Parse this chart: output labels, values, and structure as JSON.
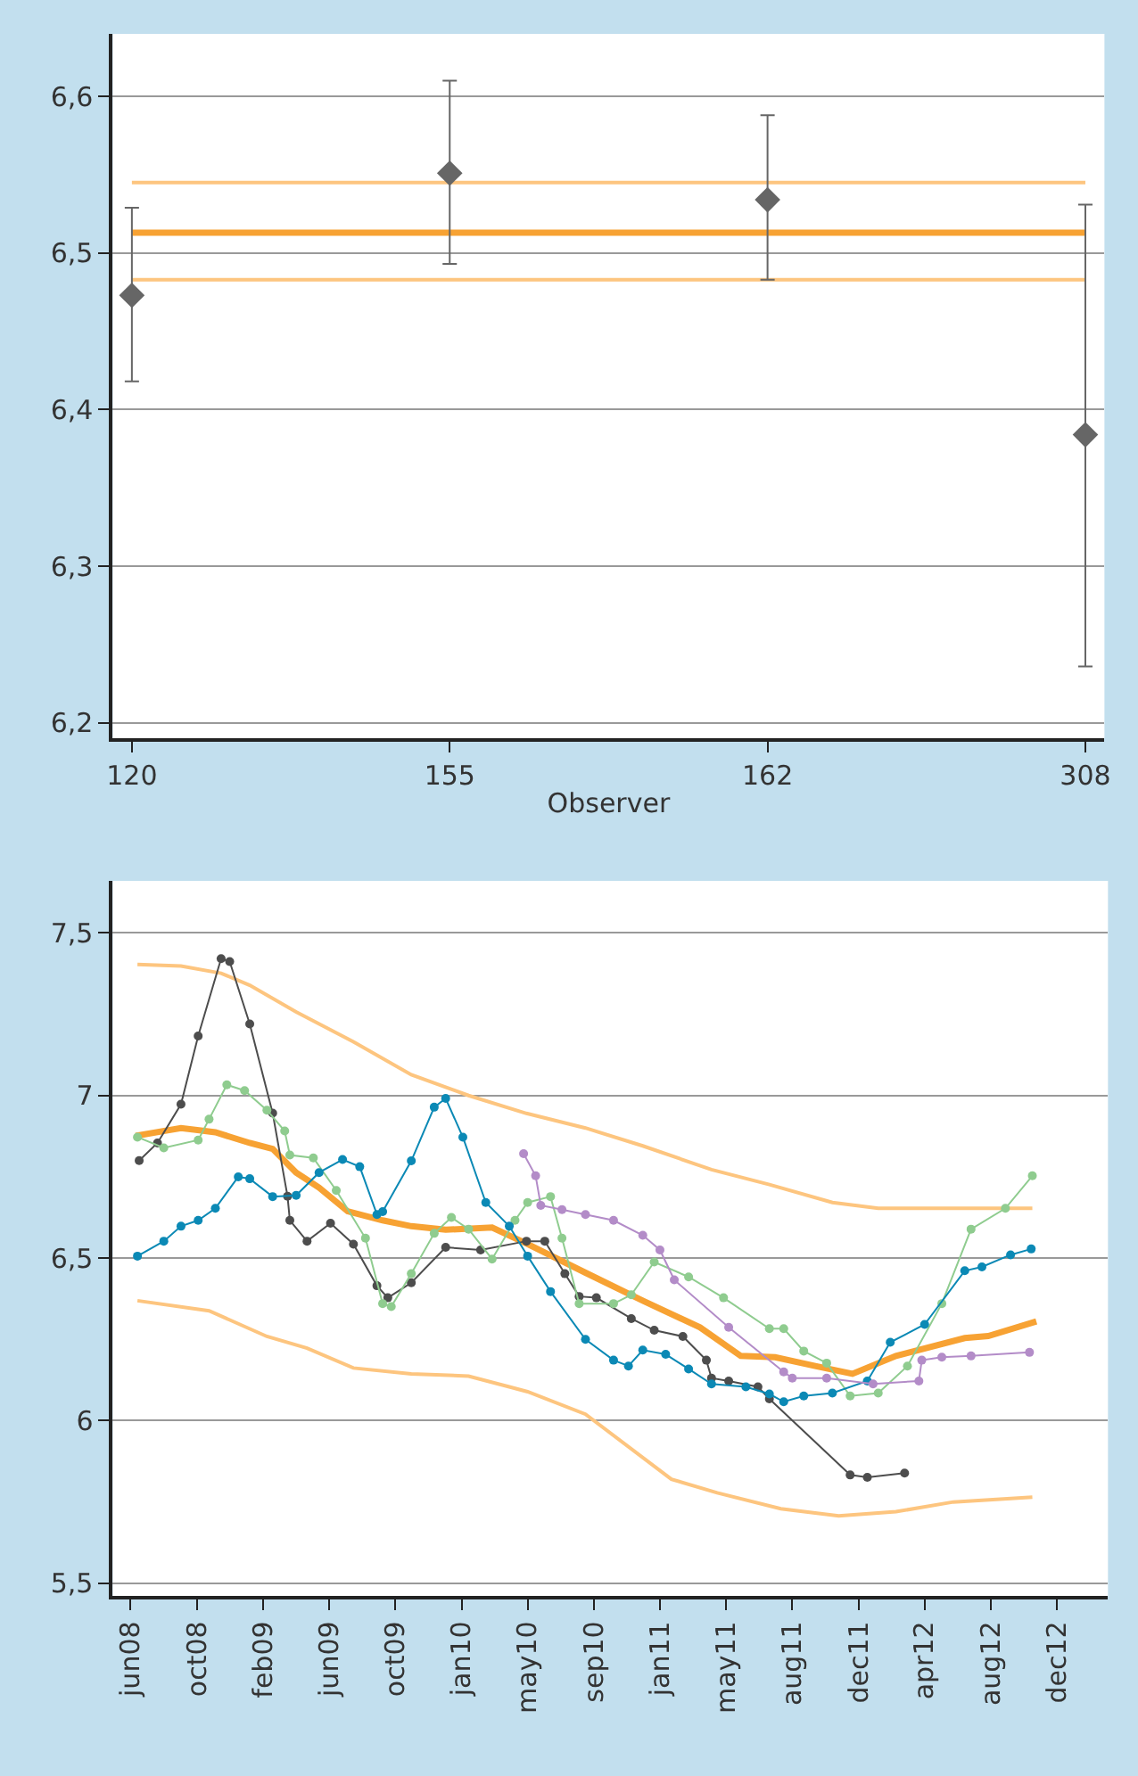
{
  "chart_data": [
    {
      "type": "scatter",
      "xlabel": "Observer",
      "categories": [
        "120",
        "155",
        "162",
        "308"
      ],
      "marker": "diamond",
      "grid": "y",
      "ylim": [
        6.19,
        6.64
      ],
      "yticks": [
        {
          "value": 6.2,
          "label": "6,2"
        },
        {
          "value": 6.3,
          "label": "6,3"
        },
        {
          "value": 6.4,
          "label": "6,4"
        },
        {
          "value": 6.5,
          "label": "6,5"
        },
        {
          "value": 6.6,
          "label": "6,6"
        }
      ],
      "series": [
        {
          "color": "#666666",
          "values": [
            6.473,
            6.551,
            6.534,
            6.384
          ],
          "errors": [
            [
              6.418,
              6.529
            ],
            [
              6.493,
              6.61
            ],
            [
              6.483,
              6.588
            ],
            [
              6.236,
              6.531
            ]
          ]
        }
      ],
      "ref_lines": [
        {
          "axis": "y",
          "value": 6.545,
          "color": "#fdc57f",
          "line_style": "solid"
        },
        {
          "axis": "y",
          "value": 6.513,
          "color": "#f7a233",
          "line_style": "solid"
        },
        {
          "axis": "y",
          "value": 6.483,
          "color": "#fdc57f",
          "line_style": "solid"
        }
      ]
    },
    {
      "type": "line",
      "marker": "circle",
      "grid": "y",
      "line_style": "solid",
      "xlim": [
        "2008-05-29",
        "2013-03-01"
      ],
      "xticks": [
        {
          "value": "2008-06-29",
          "label": "jun08"
        },
        {
          "value": "2008-10-23",
          "label": "oct08"
        },
        {
          "value": "2009-02-15",
          "label": "feb09"
        },
        {
          "value": "2009-06-11",
          "label": "jun09"
        },
        {
          "value": "2009-10-04",
          "label": "oct09"
        },
        {
          "value": "2010-01-28",
          "label": "jan10"
        },
        {
          "value": "2010-05-23",
          "label": "may10"
        },
        {
          "value": "2010-09-16",
          "label": "sep10"
        },
        {
          "value": "2011-01-09",
          "label": "jan11"
        },
        {
          "value": "2011-05-05",
          "label": "may11"
        },
        {
          "value": "2011-08-28",
          "label": "aug11"
        },
        {
          "value": "2011-12-22",
          "label": "dec11"
        },
        {
          "value": "2012-04-15",
          "label": "apr12"
        },
        {
          "value": "2012-08-09",
          "label": "aug12"
        },
        {
          "value": "2012-12-02",
          "label": "dec12"
        }
      ],
      "ylim": [
        5.46,
        7.66
      ],
      "yticks": [
        {
          "value": 5.5,
          "label": "5,5"
        },
        6,
        {
          "value": 6.5,
          "label": "6,5"
        },
        7,
        {
          "value": 7.5,
          "label": "7,5"
        }
      ],
      "series": [
        {
          "color": "#fdc57f",
          "marker": "none",
          "x": [
            "2008-07-11",
            "2008-09-25",
            "2008-12-04",
            "2009-01-23",
            "2009-04-14",
            "2009-07-23",
            "2009-11-01",
            "2010-02-09",
            "2010-05-21",
            "2010-09-01",
            "2010-12-10",
            "2011-04-09",
            "2011-07-19",
            "2011-11-06",
            "2012-01-25",
            "2012-04-25",
            "2012-10-20"
          ],
          "values": [
            7.403,
            7.398,
            7.376,
            7.339,
            7.257,
            7.165,
            7.064,
            7.0,
            6.945,
            6.9,
            6.845,
            6.772,
            6.726,
            6.671,
            6.653,
            6.653,
            6.653
          ]
        },
        {
          "color": "#fdc57f",
          "marker": "none",
          "x": [
            "2008-07-11",
            "2008-11-13",
            "2009-02-22",
            "2009-05-03",
            "2009-07-23",
            "2009-11-01",
            "2010-02-09",
            "2010-04-21",
            "2010-05-23",
            "2010-09-01",
            "2011-01-29",
            "2011-04-19",
            "2011-08-08",
            "2011-11-17",
            "2012-02-25",
            "2012-06-04",
            "2012-10-20"
          ],
          "values": [
            6.369,
            6.338,
            6.259,
            6.223,
            6.162,
            6.144,
            6.137,
            6.104,
            6.089,
            6.02,
            5.82,
            5.778,
            5.729,
            5.707,
            5.72,
            5.75,
            5.765
          ]
        },
        {
          "color": "#f7a233",
          "marker": "none",
          "x": [
            "2008-07-08",
            "2008-09-25",
            "2008-11-24",
            "2009-01-23",
            "2009-03-04",
            "2009-04-14",
            "2009-05-24",
            "2009-07-13",
            "2009-09-12",
            "2009-11-01",
            "2009-12-31",
            "2010-03-22",
            "2010-05-23",
            "2010-09-01",
            "2010-12-10",
            "2011-03-20",
            "2011-05-30",
            "2011-07-29",
            "2011-10-07",
            "2011-12-11",
            "2012-02-25",
            "2012-06-24",
            "2012-08-04",
            "2012-10-27"
          ],
          "values": [
            6.876,
            6.9,
            6.887,
            6.854,
            6.836,
            6.763,
            6.717,
            6.644,
            6.616,
            6.598,
            6.587,
            6.594,
            6.543,
            6.455,
            6.369,
            6.287,
            6.199,
            6.195,
            6.168,
            6.144,
            6.199,
            6.254,
            6.26,
            6.305
          ]
        },
        {
          "color": "#4d4d4d",
          "x": [
            "2008-07-14",
            "2008-08-15",
            "2008-09-25",
            "2008-10-25",
            "2008-12-04",
            "2008-12-19",
            "2009-01-23",
            "2009-03-04",
            "2009-03-30",
            "2009-04-03",
            "2009-05-03",
            "2009-06-13",
            "2009-07-23",
            "2009-09-02",
            "2009-09-21",
            "2009-11-01",
            "2009-12-31",
            "2010-03-02",
            "2010-05-21",
            "2010-06-22",
            "2010-07-27",
            "2010-08-21",
            "2010-09-20",
            "2010-11-20",
            "2010-12-30",
            "2011-02-18",
            "2011-03-31",
            "2011-04-09",
            "2011-05-09",
            "2011-06-29",
            "2011-07-19",
            "2011-12-07",
            "2012-01-06",
            "2012-03-11"
          ],
          "values": [
            6.8,
            6.854,
            6.973,
            7.183,
            7.421,
            7.412,
            7.22,
            6.946,
            6.69,
            6.616,
            6.552,
            6.607,
            6.543,
            6.415,
            6.378,
            6.424,
            6.533,
            6.525,
            6.552,
            6.552,
            6.452,
            6.382,
            6.378,
            6.314,
            6.278,
            6.259,
            6.186,
            6.131,
            6.122,
            6.104,
            6.067,
            5.833,
            5.826,
            5.839
          ]
        },
        {
          "color": "#8fcc8f",
          "x": [
            "2008-07-11",
            "2008-08-26",
            "2008-10-25",
            "2008-11-13",
            "2008-12-14",
            "2009-01-14",
            "2009-02-22",
            "2009-03-25",
            "2009-04-03",
            "2009-05-14",
            "2009-06-23",
            "2009-08-13",
            "2009-09-12",
            "2009-09-27",
            "2009-11-01",
            "2009-12-11",
            "2010-01-10",
            "2010-02-09",
            "2010-03-22",
            "2010-05-01",
            "2010-05-23",
            "2010-07-02",
            "2010-07-22",
            "2010-08-21",
            "2010-10-20",
            "2010-11-20",
            "2010-12-30",
            "2011-02-28",
            "2011-04-30",
            "2011-07-19",
            "2011-08-13",
            "2011-09-17",
            "2011-10-27",
            "2011-12-07",
            "2012-01-25",
            "2012-03-16",
            "2012-05-15",
            "2012-07-05",
            "2012-09-03",
            "2012-10-20"
          ],
          "values": [
            6.872,
            6.839,
            6.863,
            6.927,
            7.033,
            7.015,
            6.955,
            6.891,
            6.817,
            6.808,
            6.708,
            6.561,
            6.36,
            6.351,
            6.452,
            6.576,
            6.625,
            6.589,
            6.497,
            6.616,
            6.671,
            6.689,
            6.561,
            6.36,
            6.36,
            6.387,
            6.488,
            6.442,
            6.378,
            6.283,
            6.283,
            6.214,
            6.177,
            6.076,
            6.085,
            6.168,
            6.36,
            6.589,
            6.653,
            6.753
          ]
        },
        {
          "color": "#0b89b5",
          "x": [
            "2008-07-11",
            "2008-08-26",
            "2008-09-25",
            "2008-10-25",
            "2008-11-24",
            "2009-01-03",
            "2009-01-23",
            "2009-03-04",
            "2009-04-14",
            "2009-05-24",
            "2009-07-04",
            "2009-08-03",
            "2009-09-02",
            "2009-09-12",
            "2009-11-01",
            "2009-12-11",
            "2009-12-31",
            "2010-01-30",
            "2010-03-11",
            "2010-04-21",
            "2010-05-23",
            "2010-07-02",
            "2010-09-01",
            "2010-10-20",
            "2010-11-15",
            "2010-12-10",
            "2011-01-19",
            "2011-02-28",
            "2011-04-09",
            "2011-06-08",
            "2011-07-19",
            "2011-08-13",
            "2011-09-17",
            "2011-11-06",
            "2012-01-06",
            "2012-02-15",
            "2012-04-15",
            "2012-06-24",
            "2012-07-24",
            "2012-09-12",
            "2012-10-18"
          ],
          "values": [
            6.506,
            6.552,
            6.598,
            6.616,
            6.653,
            6.75,
            6.744,
            6.689,
            6.693,
            6.763,
            6.803,
            6.781,
            6.634,
            6.643,
            6.799,
            6.964,
            6.991,
            6.872,
            6.671,
            6.598,
            6.506,
            6.397,
            6.25,
            6.186,
            6.168,
            6.217,
            6.204,
            6.159,
            6.113,
            6.104,
            6.082,
            6.058,
            6.076,
            6.085,
            6.122,
            6.241,
            6.296,
            6.461,
            6.473,
            6.51,
            6.528
          ]
        },
        {
          "color": "#b38cc8",
          "x": [
            "2010-05-16",
            "2010-06-06",
            "2010-06-15",
            "2010-07-22",
            "2010-09-01",
            "2010-10-20",
            "2010-12-10",
            "2011-01-09",
            "2011-02-03",
            "2011-05-09",
            "2011-08-13",
            "2011-08-28",
            "2011-10-27",
            "2012-01-16",
            "2012-04-05",
            "2012-04-10",
            "2012-05-15",
            "2012-07-05",
            "2012-10-15"
          ],
          "values": [
            6.821,
            6.753,
            6.662,
            6.649,
            6.634,
            6.616,
            6.57,
            6.525,
            6.433,
            6.287,
            6.15,
            6.131,
            6.131,
            6.113,
            6.122,
            6.186,
            6.195,
            6.199,
            6.21
          ]
        }
      ]
    }
  ]
}
